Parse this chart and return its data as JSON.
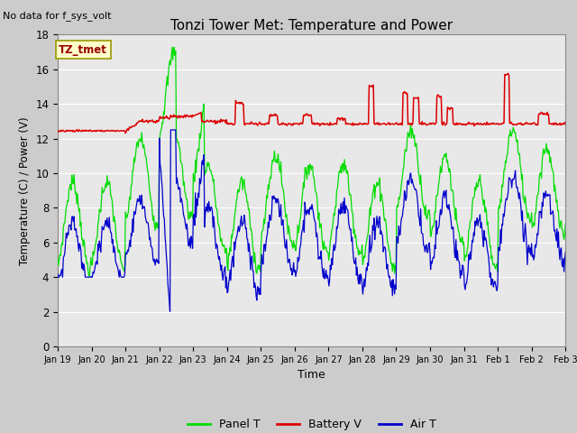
{
  "title": "Tonzi Tower Met: Temperature and Power",
  "no_data_text": "No data for f_sys_volt",
  "xlabel": "Time",
  "ylabel": "Temperature (C) / Power (V)",
  "ylim": [
    0,
    18
  ],
  "yticks": [
    0,
    2,
    4,
    6,
    8,
    10,
    12,
    14,
    16,
    18
  ],
  "xtick_labels": [
    "Jan 19",
    "Jan 20",
    "Jan 21",
    "Jan 22",
    "Jan 23",
    "Jan 24",
    "Jan 25",
    "Jan 26",
    "Jan 27",
    "Jan 28",
    "Jan 29",
    "Jan 30",
    "Jan 31",
    "Feb 1",
    "Feb 2",
    "Feb 3"
  ],
  "legend_entries": [
    "Panel T",
    "Battery V",
    "Air T"
  ],
  "line_colors": {
    "panel": "#00dd00",
    "battery": "#dd0000",
    "air": "#0000cc"
  },
  "bg_color": "#e8e8e8",
  "annotation_text": "TZ_tmet",
  "annotation_box_color": "#ffffcc",
  "annotation_box_edge": "#999900"
}
